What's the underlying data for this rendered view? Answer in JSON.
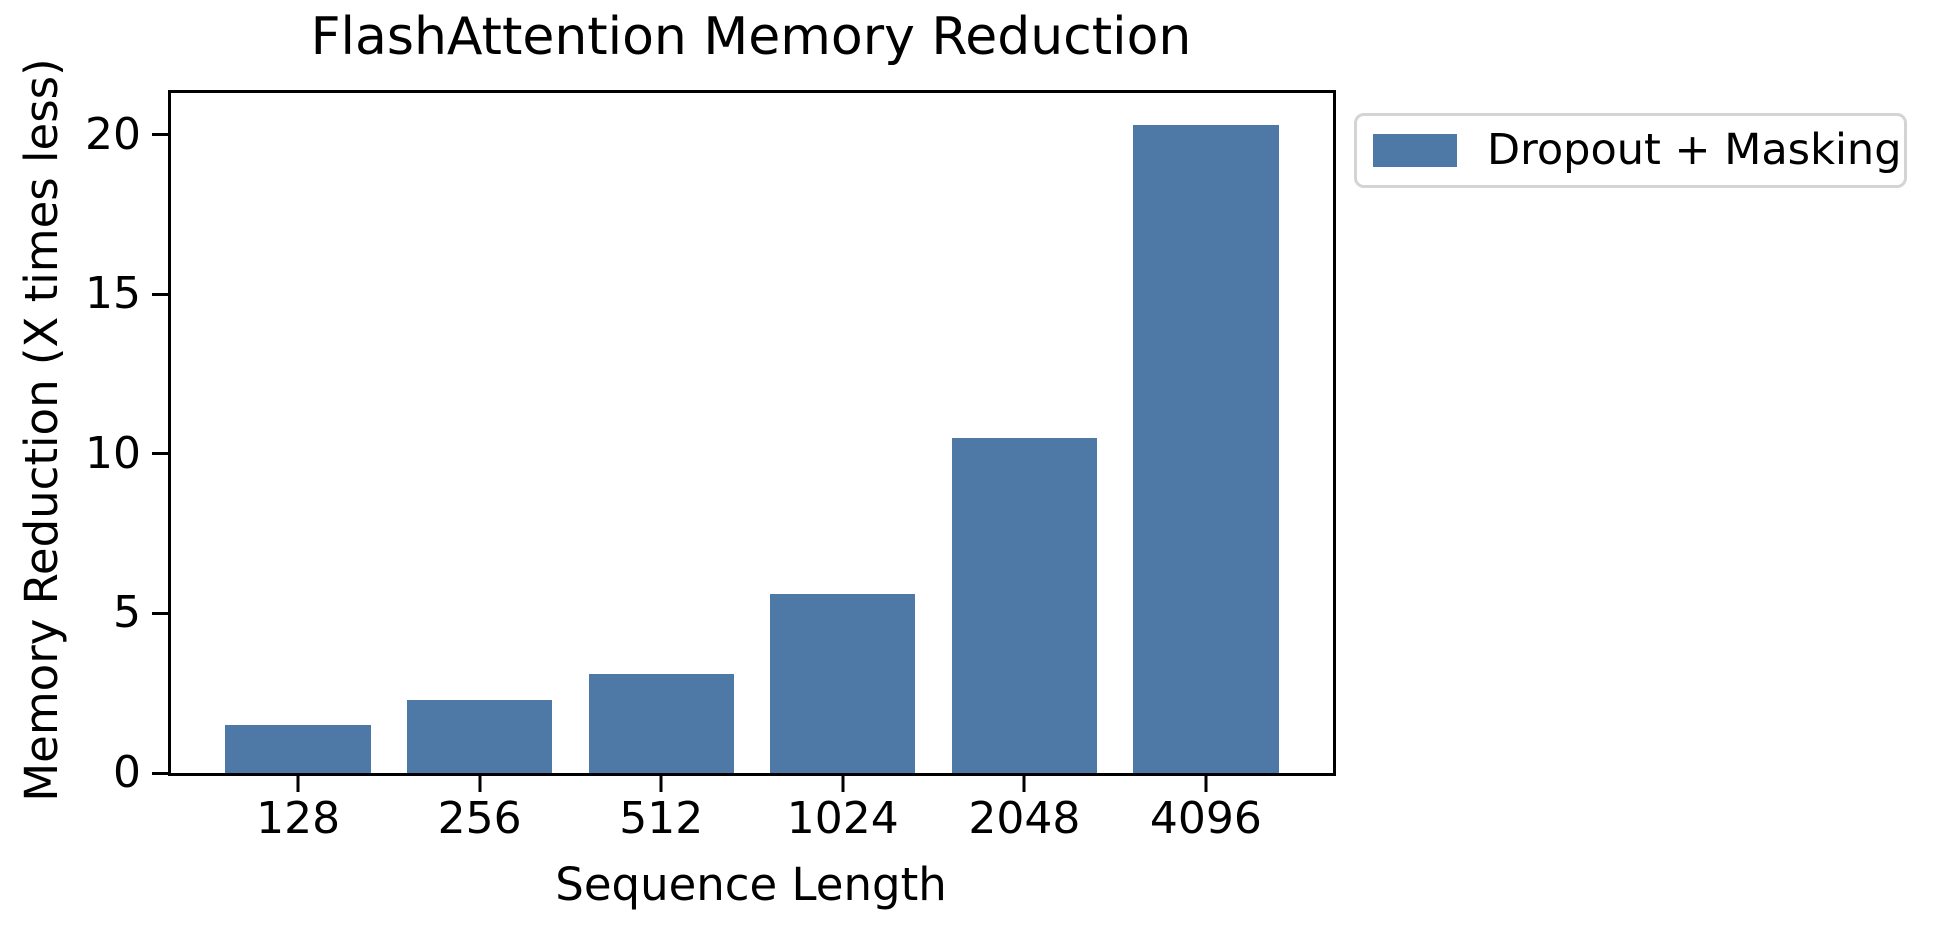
{
  "chart_data": {
    "type": "bar",
    "title": "FlashAttention Memory Reduction",
    "xlabel": "Sequence Length",
    "ylabel": "Memory Reduction (X times less)",
    "categories": [
      "128",
      "256",
      "512",
      "1024",
      "2048",
      "4096"
    ],
    "series": [
      {
        "name": "Dropout + Masking",
        "values": [
          1.5,
          2.3,
          3.1,
          5.6,
          10.5,
          20.3
        ],
        "color": "#4e79a7"
      }
    ],
    "yticks": [
      0,
      5,
      10,
      15,
      20
    ],
    "ylim": [
      0,
      21.3
    ],
    "x_margin_units": 0.7,
    "bar_width_units": 0.8,
    "grid": false,
    "legend_position": "outside-upper-right",
    "spine_color": "#000000",
    "background_color": "#ffffff",
    "legend_border_color": "#d4d4d4"
  }
}
